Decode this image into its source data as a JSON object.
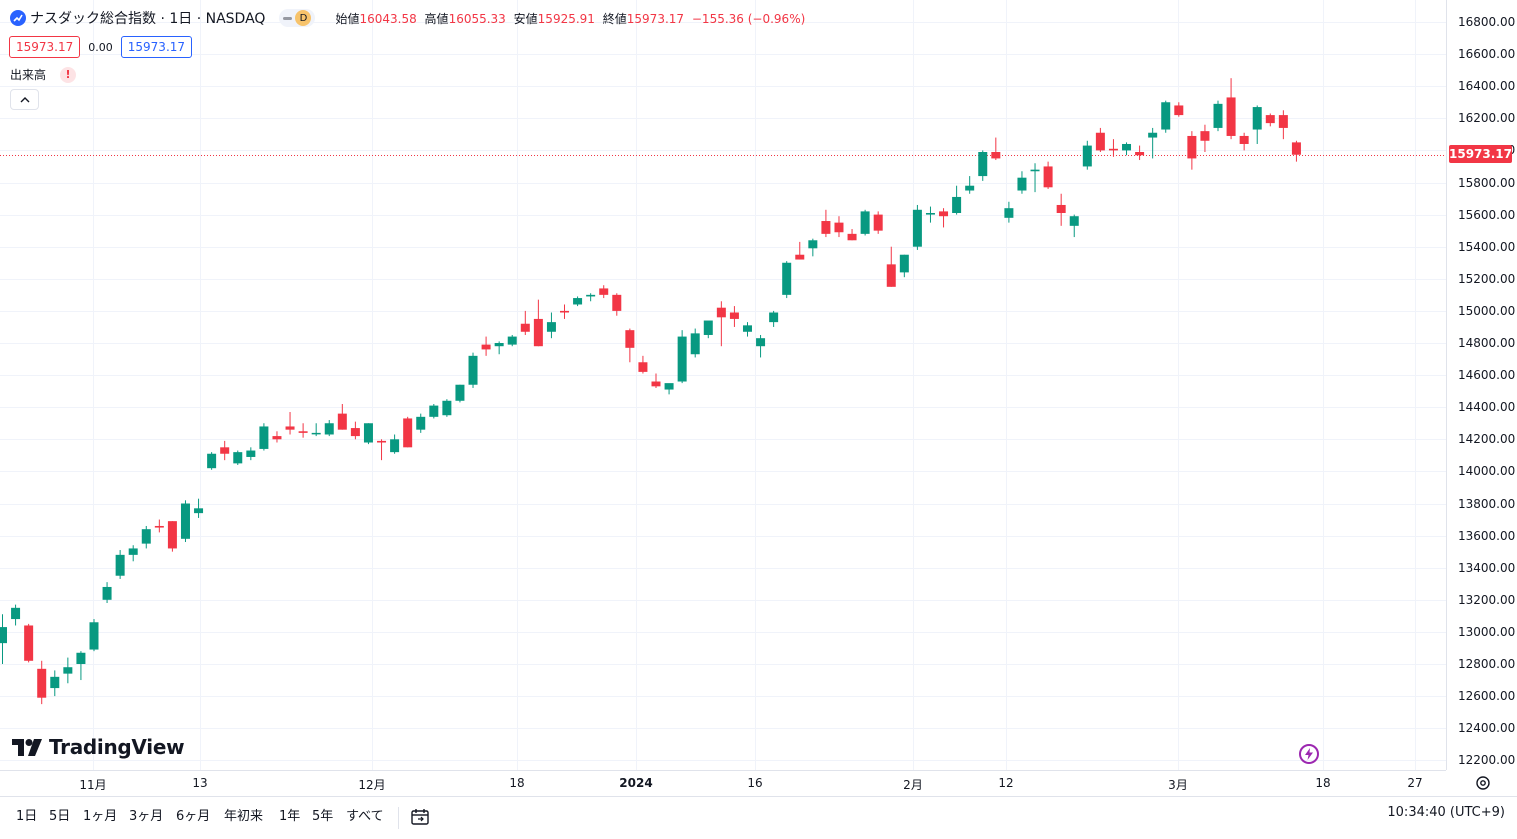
{
  "legend": {
    "title": "ナスダック総合指数 · 1日 · NASDAQ",
    "interval_badge": "D",
    "ohlc": [
      {
        "key": "始値",
        "value": "16043.58"
      },
      {
        "key": "高値",
        "value": "16055.33"
      },
      {
        "key": "安値",
        "value": "15925.91"
      },
      {
        "key": "終値",
        "value": "15973.17"
      }
    ],
    "change": "−155.36 (−0.96%)"
  },
  "trade": {
    "sell_price": "15973.17",
    "spread": "0.00",
    "buy_price": "15973.17"
  },
  "volume_indicator": {
    "label": "出来高",
    "warning": "!"
  },
  "last_price_tag": "15973.17",
  "price_axis": [
    "16800.00",
    "16600.00",
    "16400.00",
    "16200.00",
    "16000.00",
    "15800.00",
    "15600.00",
    "15400.00",
    "15200.00",
    "15000.00",
    "14800.00",
    "14600.00",
    "14400.00",
    "14200.00",
    "14000.00",
    "13800.00",
    "13600.00",
    "13400.00",
    "13200.00",
    "13000.00",
    "12800.00",
    "12600.00",
    "12400.00",
    "12200.00"
  ],
  "time_axis": [
    {
      "label": "11月",
      "bold": false
    },
    {
      "label": "13",
      "bold": false
    },
    {
      "label": "12月",
      "bold": false
    },
    {
      "label": "18",
      "bold": false
    },
    {
      "label": "2024",
      "bold": true
    },
    {
      "label": "16",
      "bold": false
    },
    {
      "label": "2月",
      "bold": false
    },
    {
      "label": "12",
      "bold": false
    },
    {
      "label": "3月",
      "bold": false
    },
    {
      "label": "18",
      "bold": false
    },
    {
      "label": "27",
      "bold": false
    }
  ],
  "branding": {
    "logo_text": "TradingView"
  },
  "range_buttons": [
    "1日",
    "5日",
    "1ヶ月",
    "3ヶ月",
    "6ヶ月",
    "年初来",
    "1年",
    "5年",
    "すべて"
  ],
  "clock": "10:34:40 (UTC+9)",
  "colors": {
    "up": "#089981",
    "down": "#f23645",
    "grid": "#f0f3fa",
    "text": "#131722",
    "accent": "#2962ff"
  },
  "chart_data": {
    "type": "candlestick",
    "title": "ナスダック総合指数 · 1日 · NASDAQ",
    "x_ticks": [
      "11月",
      "13",
      "12月",
      "18",
      "2024",
      "16",
      "2月",
      "12",
      "3月",
      "18",
      "27"
    ],
    "ylim": [
      12100,
      16900
    ],
    "y_ticks": [
      16800,
      16600,
      16400,
      16200,
      16000,
      15800,
      15600,
      15400,
      15200,
      15000,
      14800,
      14600,
      14400,
      14200,
      14000,
      13800,
      13600,
      13400,
      13200,
      13000,
      12800,
      12600,
      12400,
      12200
    ],
    "grid": true,
    "last_price": 15973.17,
    "candles": [
      {
        "o": 12930,
        "h": 13110,
        "l": 12800,
        "c": 13030
      },
      {
        "o": 13080,
        "h": 13170,
        "l": 13040,
        "c": 13150
      },
      {
        "o": 13040,
        "h": 13050,
        "l": 12810,
        "c": 12820
      },
      {
        "o": 12770,
        "h": 12820,
        "l": 12550,
        "c": 12590
      },
      {
        "o": 12650,
        "h": 12760,
        "l": 12600,
        "c": 12720
      },
      {
        "o": 12740,
        "h": 12840,
        "l": 12680,
        "c": 12780
      },
      {
        "o": 12800,
        "h": 12880,
        "l": 12700,
        "c": 12870
      },
      {
        "o": 12890,
        "h": 13080,
        "l": 12880,
        "c": 13060
      },
      {
        "o": 13200,
        "h": 13310,
        "l": 13180,
        "c": 13280
      },
      {
        "o": 13350,
        "h": 13510,
        "l": 13330,
        "c": 13480
      },
      {
        "o": 13480,
        "h": 13540,
        "l": 13440,
        "c": 13520
      },
      {
        "o": 13550,
        "h": 13660,
        "l": 13520,
        "c": 13640
      },
      {
        "o": 13660,
        "h": 13700,
        "l": 13620,
        "c": 13650
      },
      {
        "o": 13690,
        "h": 13690,
        "l": 13500,
        "c": 13520
      },
      {
        "o": 13580,
        "h": 13820,
        "l": 13560,
        "c": 13800
      },
      {
        "o": 13740,
        "h": 13830,
        "l": 13710,
        "c": 13770
      },
      {
        "o": 14020,
        "h": 14120,
        "l": 14010,
        "c": 14110
      },
      {
        "o": 14150,
        "h": 14190,
        "l": 14070,
        "c": 14110
      },
      {
        "o": 14050,
        "h": 14130,
        "l": 14040,
        "c": 14120
      },
      {
        "o": 14090,
        "h": 14150,
        "l": 14070,
        "c": 14130
      },
      {
        "o": 14140,
        "h": 14300,
        "l": 14130,
        "c": 14280
      },
      {
        "o": 14220,
        "h": 14250,
        "l": 14180,
        "c": 14200
      },
      {
        "o": 14280,
        "h": 14370,
        "l": 14230,
        "c": 14260
      },
      {
        "o": 14250,
        "h": 14300,
        "l": 14210,
        "c": 14240
      },
      {
        "o": 14240,
        "h": 14300,
        "l": 14220,
        "c": 14240
      },
      {
        "o": 14230,
        "h": 14320,
        "l": 14220,
        "c": 14300
      },
      {
        "o": 14360,
        "h": 14420,
        "l": 14260,
        "c": 14260
      },
      {
        "o": 14270,
        "h": 14310,
        "l": 14200,
        "c": 14220
      },
      {
        "o": 14180,
        "h": 14300,
        "l": 14170,
        "c": 14300
      },
      {
        "o": 14190,
        "h": 14200,
        "l": 14070,
        "c": 14180
      },
      {
        "o": 14120,
        "h": 14230,
        "l": 14110,
        "c": 14200
      },
      {
        "o": 14330,
        "h": 14340,
        "l": 14150,
        "c": 14150
      },
      {
        "o": 14260,
        "h": 14360,
        "l": 14240,
        "c": 14340
      },
      {
        "o": 14340,
        "h": 14420,
        "l": 14330,
        "c": 14410
      },
      {
        "o": 14350,
        "h": 14450,
        "l": 14340,
        "c": 14440
      },
      {
        "o": 14440,
        "h": 14540,
        "l": 14430,
        "c": 14540
      },
      {
        "o": 14540,
        "h": 14740,
        "l": 14520,
        "c": 14720
      },
      {
        "o": 14790,
        "h": 14840,
        "l": 14720,
        "c": 14760
      },
      {
        "o": 14780,
        "h": 14810,
        "l": 14730,
        "c": 14800
      },
      {
        "o": 14790,
        "h": 14850,
        "l": 14780,
        "c": 14840
      },
      {
        "o": 14920,
        "h": 15000,
        "l": 14850,
        "c": 14870
      },
      {
        "o": 14950,
        "h": 15070,
        "l": 14780,
        "c": 14780
      },
      {
        "o": 14870,
        "h": 14990,
        "l": 14830,
        "c": 14930
      },
      {
        "o": 15000,
        "h": 15040,
        "l": 14950,
        "c": 14990
      },
      {
        "o": 15040,
        "h": 15090,
        "l": 15030,
        "c": 15080
      },
      {
        "o": 15090,
        "h": 15110,
        "l": 15060,
        "c": 15100
      },
      {
        "o": 15140,
        "h": 15160,
        "l": 15080,
        "c": 15100
      },
      {
        "o": 15100,
        "h": 15110,
        "l": 14970,
        "c": 15000
      },
      {
        "o": 14880,
        "h": 14890,
        "l": 14680,
        "c": 14770
      },
      {
        "o": 14680,
        "h": 14720,
        "l": 14610,
        "c": 14620
      },
      {
        "o": 14560,
        "h": 14610,
        "l": 14520,
        "c": 14530
      },
      {
        "o": 14510,
        "h": 14540,
        "l": 14480,
        "c": 14550
      },
      {
        "o": 14560,
        "h": 14880,
        "l": 14550,
        "c": 14840
      },
      {
        "o": 14730,
        "h": 14890,
        "l": 14710,
        "c": 14860
      },
      {
        "o": 14850,
        "h": 14920,
        "l": 14830,
        "c": 14940
      },
      {
        "o": 15020,
        "h": 15060,
        "l": 14780,
        "c": 14960
      },
      {
        "o": 14990,
        "h": 15030,
        "l": 14900,
        "c": 14950
      },
      {
        "o": 14870,
        "h": 14930,
        "l": 14840,
        "c": 14910
      },
      {
        "o": 14780,
        "h": 14850,
        "l": 14710,
        "c": 14830
      },
      {
        "o": 14930,
        "h": 15000,
        "l": 14900,
        "c": 14990
      },
      {
        "o": 15100,
        "h": 15310,
        "l": 15080,
        "c": 15300
      },
      {
        "o": 15350,
        "h": 15430,
        "l": 15320,
        "c": 15320
      },
      {
        "o": 15390,
        "h": 15450,
        "l": 15340,
        "c": 15440
      },
      {
        "o": 15560,
        "h": 15630,
        "l": 15460,
        "c": 15480
      },
      {
        "o": 15550,
        "h": 15590,
        "l": 15460,
        "c": 15490
      },
      {
        "o": 15480,
        "h": 15510,
        "l": 15440,
        "c": 15440
      },
      {
        "o": 15480,
        "h": 15630,
        "l": 15470,
        "c": 15620
      },
      {
        "o": 15600,
        "h": 15620,
        "l": 15480,
        "c": 15500
      },
      {
        "o": 15290,
        "h": 15400,
        "l": 15150,
        "c": 15150
      },
      {
        "o": 15240,
        "h": 15350,
        "l": 15210,
        "c": 15350
      },
      {
        "o": 15400,
        "h": 15660,
        "l": 15380,
        "c": 15630
      },
      {
        "o": 15600,
        "h": 15650,
        "l": 15550,
        "c": 15610
      },
      {
        "o": 15620,
        "h": 15640,
        "l": 15520,
        "c": 15590
      },
      {
        "o": 15610,
        "h": 15780,
        "l": 15600,
        "c": 15710
      },
      {
        "o": 15750,
        "h": 15840,
        "l": 15730,
        "c": 15780
      },
      {
        "o": 15840,
        "h": 16000,
        "l": 15810,
        "c": 15990
      },
      {
        "o": 15990,
        "h": 16080,
        "l": 15940,
        "c": 15950
      },
      {
        "o": 15580,
        "h": 15680,
        "l": 15550,
        "c": 15640
      },
      {
        "o": 15750,
        "h": 15870,
        "l": 15730,
        "c": 15830
      },
      {
        "o": 15870,
        "h": 15920,
        "l": 15740,
        "c": 15880
      },
      {
        "o": 15900,
        "h": 15930,
        "l": 15760,
        "c": 15770
      },
      {
        "o": 15660,
        "h": 15730,
        "l": 15530,
        "c": 15610
      },
      {
        "o": 15530,
        "h": 15600,
        "l": 15460,
        "c": 15590
      },
      {
        "o": 15900,
        "h": 16060,
        "l": 15880,
        "c": 16030
      },
      {
        "o": 16110,
        "h": 16140,
        "l": 15990,
        "c": 16000
      },
      {
        "o": 16010,
        "h": 16070,
        "l": 15960,
        "c": 16000
      },
      {
        "o": 16000,
        "h": 16050,
        "l": 15970,
        "c": 16040
      },
      {
        "o": 15990,
        "h": 16030,
        "l": 15940,
        "c": 15970
      },
      {
        "o": 16080,
        "h": 16140,
        "l": 15950,
        "c": 16110
      },
      {
        "o": 16130,
        "h": 16310,
        "l": 16110,
        "c": 16300
      },
      {
        "o": 16280,
        "h": 16300,
        "l": 16210,
        "c": 16220
      },
      {
        "o": 16090,
        "h": 16120,
        "l": 15880,
        "c": 15950
      },
      {
        "o": 16120,
        "h": 16160,
        "l": 15990,
        "c": 16060
      },
      {
        "o": 16140,
        "h": 16310,
        "l": 16120,
        "c": 16290
      },
      {
        "o": 16330,
        "h": 16450,
        "l": 16070,
        "c": 16090
      },
      {
        "o": 16090,
        "h": 16110,
        "l": 16000,
        "c": 16040
      },
      {
        "o": 16130,
        "h": 16280,
        "l": 16040,
        "c": 16270
      },
      {
        "o": 16220,
        "h": 16230,
        "l": 16150,
        "c": 16170
      },
      {
        "o": 16220,
        "h": 16250,
        "l": 16070,
        "c": 16140
      },
      {
        "o": 16050,
        "h": 16060,
        "l": 15930,
        "c": 15973
      }
    ]
  }
}
